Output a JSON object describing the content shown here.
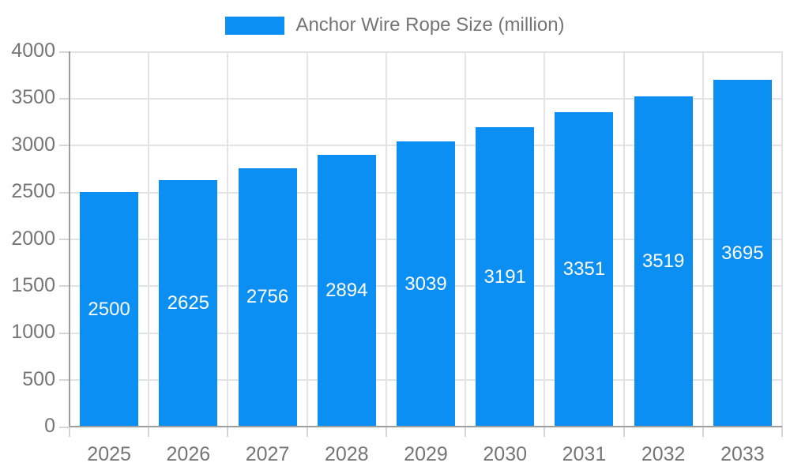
{
  "chart_data": {
    "type": "bar",
    "title": "Anchor Wire Rope Size (million)",
    "categories": [
      "2025",
      "2026",
      "2027",
      "2028",
      "2029",
      "2030",
      "2031",
      "2032",
      "2033"
    ],
    "values": [
      2500,
      2625,
      2756,
      2894,
      3039,
      3191,
      3351,
      3519,
      3695
    ],
    "bar_value_labels": [
      "2500",
      "2625",
      "2756",
      "2894",
      "3039",
      "3191",
      "3351",
      "3519",
      "3695"
    ],
    "xlabel": "",
    "ylabel": "",
    "ylim": [
      0,
      4000
    ],
    "yticks": [
      0,
      500,
      1000,
      1500,
      2000,
      2500,
      3000,
      3500,
      4000
    ],
    "grid": true,
    "legend_position": "top",
    "colors": {
      "bar": "#0b8ff2",
      "bar_label": "#ffffff",
      "axis": "#9e9e9e",
      "grid": "#e3e3e3",
      "tick": "#d6d6d6",
      "text": "#757575",
      "background": "#ffffff"
    }
  }
}
